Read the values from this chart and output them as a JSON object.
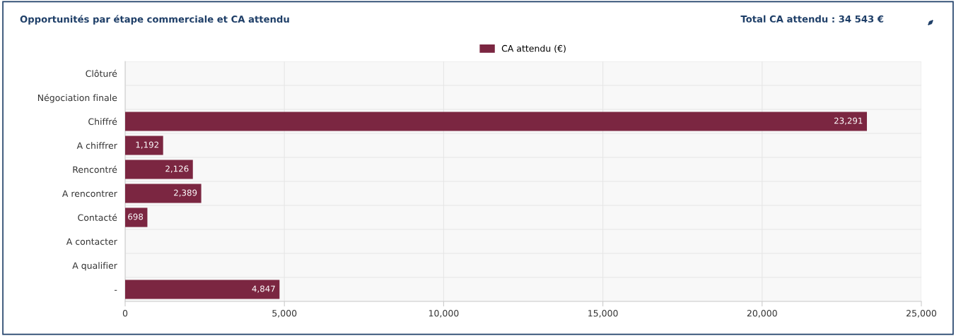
{
  "chart_data": {
    "type": "bar",
    "orientation": "horizontal",
    "title": "Opportunités par étape commerciale et CA attendu",
    "annotations": [
      "Total CA attendu : 34 543 €"
    ],
    "categories": [
      "Clôturé",
      "Négociation finale",
      "Chiffré",
      "A chiffrer",
      "Rencontré",
      "A rencontrer",
      "Contacté",
      "A contacter",
      "A qualifier",
      "-"
    ],
    "series": [
      {
        "name": "CA attendu (€)",
        "color": "#7b2641",
        "values": [
          null,
          null,
          23291,
          1192,
          2126,
          2389,
          698,
          null,
          null,
          4847
        ],
        "value_labels": [
          null,
          null,
          "23,291",
          "1,192",
          "2,126",
          "2,389",
          "698",
          null,
          null,
          "4,847"
        ]
      }
    ],
    "xlim": [
      0,
      25000
    ],
    "xticks": [
      {
        "value": 0,
        "label": "0"
      },
      {
        "value": 5000,
        "label": "5,000"
      },
      {
        "value": 10000,
        "label": "10,000"
      },
      {
        "value": 15000,
        "label": "15,000"
      },
      {
        "value": 20000,
        "label": "20,000"
      },
      {
        "value": 25000,
        "label": "25,000"
      }
    ],
    "grid": true,
    "legend": "top"
  }
}
